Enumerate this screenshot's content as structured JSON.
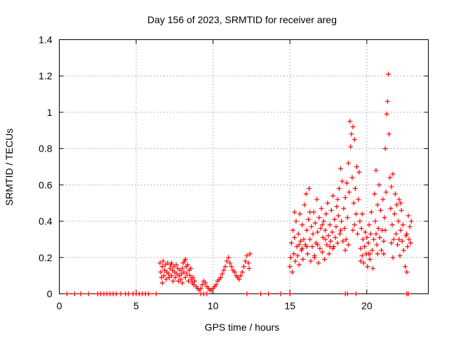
{
  "chart_data": {
    "type": "scatter",
    "title": "Day 156 of 2023, SRMTID for receiver areg",
    "xlabel": "GPS time / hours",
    "ylabel": "SRMTID / TECUs",
    "xlim": [
      0,
      24
    ],
    "ylim": [
      0,
      1.4
    ],
    "xticks": [
      0,
      5,
      10,
      15,
      20
    ],
    "xtick_labels": [
      "0",
      "5",
      "10",
      "15",
      "20"
    ],
    "yticks": [
      0,
      0.2,
      0.4,
      0.6,
      0.8,
      1.0,
      1.2,
      1.4
    ],
    "ytick_labels": [
      "0",
      "0.2",
      "0.4",
      "0.6",
      "0.8",
      "1",
      "1.2",
      "1.4"
    ],
    "grid": true,
    "marker": "plus",
    "color": "#ff0000",
    "series": [
      {
        "name": "SRMTID",
        "points": [
          [
            0.5,
            0
          ],
          [
            1.0,
            0
          ],
          [
            1.4,
            0
          ],
          [
            1.9,
            0
          ],
          [
            2.5,
            0
          ],
          [
            2.7,
            0
          ],
          [
            2.9,
            0
          ],
          [
            3.1,
            0
          ],
          [
            3.3,
            0
          ],
          [
            3.5,
            0
          ],
          [
            3.7,
            0
          ],
          [
            4.0,
            0
          ],
          [
            4.3,
            0
          ],
          [
            4.5,
            0
          ],
          [
            4.8,
            0
          ],
          [
            5.0,
            0
          ],
          [
            5.2,
            0
          ],
          [
            5.4,
            0
          ],
          [
            5.6,
            0
          ],
          [
            5.8,
            0
          ],
          [
            6.3,
            0
          ],
          [
            9.2,
            0
          ],
          [
            9.4,
            0
          ],
          [
            9.6,
            0
          ],
          [
            12.2,
            0
          ],
          [
            13.1,
            0
          ],
          [
            13.6,
            0
          ],
          [
            14.4,
            0
          ],
          [
            15.0,
            0
          ],
          [
            18.6,
            0
          ],
          [
            18.75,
            0
          ],
          [
            19.3,
            0
          ],
          [
            22.6,
            0
          ],
          [
            22.7,
            0
          ],
          [
            6.55,
            0.17
          ],
          [
            6.6,
            0.12
          ],
          [
            6.65,
            0.09
          ],
          [
            6.7,
            0.15
          ],
          [
            6.75,
            0.18
          ],
          [
            6.8,
            0.1
          ],
          [
            6.85,
            0.13
          ],
          [
            6.9,
            0.16
          ],
          [
            6.95,
            0.08
          ],
          [
            7.0,
            0.12
          ],
          [
            7.05,
            0.17
          ],
          [
            7.1,
            0.11
          ],
          [
            7.15,
            0.09
          ],
          [
            7.2,
            0.14
          ],
          [
            7.25,
            0.16
          ],
          [
            7.3,
            0.1
          ],
          [
            7.35,
            0.13
          ],
          [
            7.4,
            0.07
          ],
          [
            7.45,
            0.15
          ],
          [
            7.5,
            0.12
          ],
          [
            7.55,
            0.09
          ],
          [
            7.6,
            0.16
          ],
          [
            7.65,
            0.11
          ],
          [
            7.7,
            0.14
          ],
          [
            7.75,
            0.07
          ],
          [
            7.8,
            0.1
          ],
          [
            7.85,
            0.13
          ],
          [
            7.9,
            0.08
          ],
          [
            7.95,
            0.11
          ],
          [
            8.0,
            0.14
          ],
          [
            8.05,
            0.17
          ],
          [
            8.1,
            0.12
          ],
          [
            8.15,
            0.18
          ],
          [
            8.2,
            0.09
          ],
          [
            8.25,
            0.15
          ],
          [
            8.3,
            0.11
          ],
          [
            8.35,
            0.16
          ],
          [
            8.4,
            0.07
          ],
          [
            8.45,
            0.13
          ],
          [
            8.5,
            0.1
          ],
          [
            8.55,
            0.14
          ],
          [
            8.6,
            0.08
          ],
          [
            8.65,
            0.06
          ],
          [
            8.7,
            0.09
          ],
          [
            8.75,
            0.05
          ],
          [
            8.8,
            0.07
          ],
          [
            6.7,
            0.06
          ],
          [
            7.3,
            0.17
          ],
          [
            8.0,
            0.06
          ],
          [
            8.2,
            0.19
          ],
          [
            8.9,
            0.04
          ],
          [
            9.0,
            0.03
          ],
          [
            9.1,
            0.02
          ],
          [
            9.2,
            0.03
          ],
          [
            9.3,
            0.05
          ],
          [
            9.4,
            0.07
          ],
          [
            9.5,
            0.06
          ],
          [
            9.6,
            0.04
          ],
          [
            9.7,
            0.03
          ],
          [
            9.8,
            0.02
          ],
          [
            9.9,
            0.02
          ],
          [
            10.0,
            0.03
          ],
          [
            10.1,
            0.04
          ],
          [
            10.2,
            0.05
          ],
          [
            10.3,
            0.07
          ],
          [
            10.4,
            0.08
          ],
          [
            10.5,
            0.09
          ],
          [
            10.6,
            0.11
          ],
          [
            10.7,
            0.13
          ],
          [
            10.8,
            0.15
          ],
          [
            10.9,
            0.18
          ],
          [
            11.0,
            0.2
          ],
          [
            11.1,
            0.17
          ],
          [
            11.2,
            0.15
          ],
          [
            11.3,
            0.13
          ],
          [
            11.4,
            0.12
          ],
          [
            11.5,
            0.1
          ],
          [
            11.6,
            0.09
          ],
          [
            11.7,
            0.08
          ],
          [
            11.8,
            0.1
          ],
          [
            11.9,
            0.12
          ],
          [
            12.0,
            0.15
          ],
          [
            12.1,
            0.18
          ],
          [
            12.2,
            0.21
          ],
          [
            12.3,
            0.17
          ],
          [
            12.35,
            0.14
          ],
          [
            12.4,
            0.22
          ],
          [
            15.0,
            0.15
          ],
          [
            15.05,
            0.2
          ],
          [
            15.1,
            0.28
          ],
          [
            15.15,
            0.12
          ],
          [
            15.2,
            0.35
          ],
          [
            15.25,
            0.22
          ],
          [
            15.3,
            0.31
          ],
          [
            15.35,
            0.18
          ],
          [
            15.4,
            0.4
          ],
          [
            15.45,
            0.26
          ],
          [
            15.5,
            0.21
          ],
          [
            15.55,
            0.33
          ],
          [
            15.6,
            0.16
          ],
          [
            15.65,
            0.44
          ],
          [
            15.7,
            0.29
          ],
          [
            15.75,
            0.24
          ],
          [
            15.8,
            0.38
          ],
          [
            15.85,
            0.19
          ],
          [
            15.9,
            0.3
          ],
          [
            15.95,
            0.49
          ],
          [
            16.0,
            0.27
          ],
          [
            16.05,
            0.55
          ],
          [
            16.1,
            0.35
          ],
          [
            16.15,
            0.22
          ],
          [
            16.2,
            0.41
          ],
          [
            16.25,
            0.58
          ],
          [
            16.3,
            0.3
          ],
          [
            16.35,
            0.18
          ],
          [
            16.4,
            0.37
          ],
          [
            16.45,
            0.26
          ],
          [
            16.5,
            0.33
          ],
          [
            16.55,
            0.45
          ],
          [
            16.6,
            0.21
          ],
          [
            16.65,
            0.39
          ],
          [
            16.7,
            0.28
          ],
          [
            16.75,
            0.52
          ],
          [
            16.8,
            0.34
          ],
          [
            16.85,
            0.17
          ],
          [
            16.9,
            0.42
          ],
          [
            16.95,
            0.25
          ],
          [
            17.0,
            0.36
          ],
          [
            17.05,
            0.47
          ],
          [
            17.1,
            0.23
          ],
          [
            17.15,
            0.31
          ],
          [
            17.2,
            0.4
          ],
          [
            17.25,
            0.19
          ],
          [
            17.3,
            0.35
          ],
          [
            17.35,
            0.44
          ],
          [
            17.4,
            0.27
          ],
          [
            17.45,
            0.5
          ],
          [
            17.5,
            0.32
          ],
          [
            17.55,
            0.22
          ],
          [
            17.6,
            0.38
          ],
          [
            17.65,
            0.29
          ],
          [
            17.7,
            0.46
          ],
          [
            17.75,
            0.34
          ],
          [
            17.8,
            0.54
          ],
          [
            17.85,
            0.26
          ],
          [
            17.9,
            0.41
          ],
          [
            17.95,
            0.31
          ],
          [
            18.0,
            0.37
          ],
          [
            18.05,
            0.48
          ],
          [
            18.1,
            0.28
          ],
          [
            18.15,
            0.43
          ],
          [
            18.2,
            0.58
          ],
          [
            18.25,
            0.33
          ],
          [
            18.3,
            0.69
          ],
          [
            18.35,
            0.4
          ],
          [
            18.4,
            0.62
          ],
          [
            18.45,
            0.29
          ],
          [
            18.5,
            0.47
          ],
          [
            18.55,
            0.36
          ],
          [
            18.6,
            0.53
          ],
          [
            18.65,
            0.3
          ],
          [
            18.7,
            0.61
          ],
          [
            18.75,
            0.42
          ],
          [
            18.8,
            0.72
          ],
          [
            18.85,
            0.56
          ],
          [
            18.9,
            0.95
          ],
          [
            18.95,
            0.81
          ],
          [
            19.0,
            0.88
          ],
          [
            19.05,
            0.64
          ],
          [
            19.1,
            0.92
          ],
          [
            19.15,
            0.5
          ],
          [
            19.2,
            0.38
          ],
          [
            19.25,
            0.58
          ],
          [
            19.3,
            0.44
          ],
          [
            19.35,
            0.7
          ],
          [
            19.4,
            0.33
          ],
          [
            19.45,
            0.52
          ],
          [
            19.5,
            0.67
          ],
          [
            19.55,
            0.4
          ],
          [
            19.6,
            0.25
          ],
          [
            19.65,
            0.36
          ],
          [
            19.7,
            0.21
          ],
          [
            19.75,
            0.3
          ],
          [
            19.8,
            0.17
          ],
          [
            19.85,
            0.26
          ],
          [
            19.9,
            0.34
          ],
          [
            19.95,
            0.22
          ],
          [
            20.0,
            0.31
          ],
          [
            20.05,
            0.15
          ],
          [
            20.1,
            0.28
          ],
          [
            20.15,
            0.38
          ],
          [
            20.2,
            0.19
          ],
          [
            20.25,
            0.33
          ],
          [
            20.3,
            0.45
          ],
          [
            20.35,
            0.24
          ],
          [
            20.4,
            0.14
          ],
          [
            20.45,
            0.3
          ],
          [
            20.5,
            0.55
          ],
          [
            20.55,
            0.4
          ],
          [
            20.6,
            0.68
          ],
          [
            20.65,
            0.27
          ],
          [
            20.7,
            0.49
          ],
          [
            20.75,
            0.36
          ],
          [
            20.8,
            0.6
          ],
          [
            20.85,
            0.31
          ],
          [
            20.9,
            0.46
          ],
          [
            20.95,
            0.24
          ],
          [
            21.0,
            0.35
          ],
          [
            21.05,
            0.52
          ],
          [
            21.1,
            0.29
          ],
          [
            21.15,
            0.42
          ],
          [
            21.2,
            0.8
          ],
          [
            21.25,
            0.56
          ],
          [
            21.3,
            0.99
          ],
          [
            21.35,
            1.06
          ],
          [
            21.4,
            1.21
          ],
          [
            21.45,
            0.88
          ],
          [
            21.5,
            0.64
          ],
          [
            21.55,
            0.47
          ],
          [
            21.6,
            0.59
          ],
          [
            21.65,
            0.38
          ],
          [
            21.7,
            0.66
          ],
          [
            21.75,
            0.3
          ],
          [
            21.8,
            0.44
          ],
          [
            21.85,
            0.55
          ],
          [
            21.9,
            0.33
          ],
          [
            21.95,
            0.49
          ],
          [
            22.0,
            0.27
          ],
          [
            22.05,
            0.4
          ],
          [
            22.1,
            0.52
          ],
          [
            22.15,
            0.21
          ],
          [
            22.2,
            0.35
          ],
          [
            22.25,
            0.46
          ],
          [
            22.3,
            0.29
          ],
          [
            22.35,
            0.38
          ],
          [
            22.4,
            0.24
          ],
          [
            22.5,
            0.15
          ],
          [
            22.55,
            0.32
          ],
          [
            22.6,
            0.12
          ],
          [
            22.65,
            0.26
          ],
          [
            22.7,
            0.43
          ],
          [
            22.75,
            0.3
          ],
          [
            22.8,
            0.37
          ],
          [
            22.85,
            0.28
          ],
          [
            22.9,
            0.4
          ],
          [
            15.3,
            0.45
          ],
          [
            15.8,
            0.25
          ],
          [
            16.3,
            0.45
          ],
          [
            16.8,
            0.27
          ],
          [
            17.3,
            0.3
          ],
          [
            17.8,
            0.25
          ],
          [
            18.3,
            0.35
          ],
          [
            18.8,
            0.27
          ],
          [
            19.2,
            0.85
          ],
          [
            19.7,
            0.44
          ],
          [
            20.2,
            0.22
          ],
          [
            20.7,
            0.22
          ],
          [
            21.2,
            0.35
          ],
          [
            21.7,
            0.2
          ],
          [
            22.2,
            0.5
          ],
          [
            15.6,
            0.27
          ],
          [
            16.1,
            0.26
          ],
          [
            16.6,
            0.2
          ],
          [
            17.1,
            0.38
          ],
          [
            17.6,
            0.26
          ],
          [
            18.1,
            0.52
          ],
          [
            18.6,
            0.24
          ],
          [
            19.1,
            0.35
          ],
          [
            19.6,
            0.18
          ],
          [
            20.1,
            0.22
          ],
          [
            20.6,
            0.33
          ],
          [
            21.1,
            0.22
          ],
          [
            21.6,
            0.28
          ],
          [
            22.1,
            0.3
          ],
          [
            22.6,
            0.33
          ]
        ]
      }
    ]
  }
}
